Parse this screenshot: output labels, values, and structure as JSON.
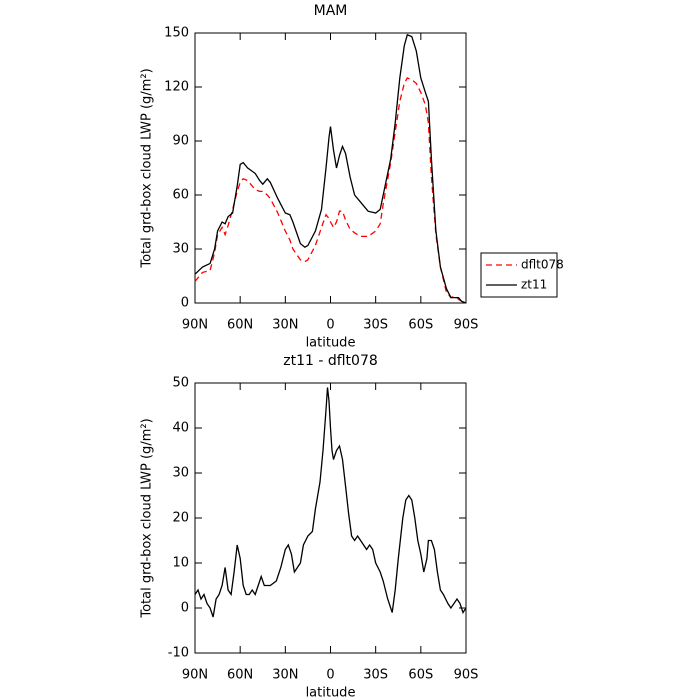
{
  "chart_data": [
    {
      "type": "line",
      "title": "MAM",
      "xlabel": "latitude",
      "ylabel": "Total grd-box cloud LWP (g/m²)",
      "x": [
        90,
        85,
        80,
        77,
        75,
        72,
        70,
        68,
        65,
        62,
        60,
        58,
        55,
        50,
        47,
        45,
        42,
        40,
        35,
        30,
        27,
        25,
        20,
        17,
        15,
        10,
        6,
        3,
        1,
        0,
        -2,
        -4,
        -6,
        -8,
        -10,
        -13,
        -16,
        -20,
        -25,
        -30,
        -33,
        -35,
        -40,
        -43,
        -46,
        -49,
        -51,
        -54,
        -57,
        -60,
        -63,
        -65,
        -67,
        -70,
        -73,
        -77,
        -80,
        -83,
        -85,
        -87,
        -90
      ],
      "series": [
        {
          "name": "dflt078",
          "color": "#ff0000",
          "line_style": "dashed",
          "values": [
            12,
            17,
            18,
            28,
            38,
            42,
            38,
            43,
            52,
            62,
            67,
            69,
            68,
            63,
            62,
            62,
            60,
            58,
            50,
            40,
            35,
            30,
            24,
            23,
            24,
            32,
            42,
            49,
            47,
            45,
            42,
            45,
            51,
            51,
            46,
            41,
            39,
            37,
            37,
            40,
            44,
            55,
            78,
            95,
            112,
            122,
            125,
            124,
            122,
            117,
            110,
            100,
            70,
            38,
            20,
            6,
            3,
            4,
            2,
            1,
            0
          ]
        },
        {
          "name": "zt11",
          "color": "#000000",
          "line_style": "solid",
          "values": [
            16,
            20,
            22,
            30,
            40,
            45,
            44,
            48,
            50,
            65,
            77,
            78,
            75,
            72,
            68,
            66,
            69,
            67,
            58,
            50,
            49,
            45,
            33,
            31,
            32,
            40,
            52,
            75,
            92,
            98,
            85,
            75,
            82,
            87,
            83,
            70,
            60,
            56,
            51,
            50,
            52,
            60,
            80,
            100,
            125,
            143,
            149,
            148,
            140,
            125,
            117,
            112,
            80,
            40,
            20,
            8,
            3,
            3,
            3,
            1,
            0
          ]
        }
      ],
      "xlim": [
        90,
        -90
      ],
      "xticks": [
        {
          "value": 90,
          "label": "90N"
        },
        {
          "value": 60,
          "label": "60N"
        },
        {
          "value": 30,
          "label": "30N"
        },
        0,
        {
          "value": -30,
          "label": "30S"
        },
        {
          "value": -60,
          "label": "60S"
        },
        {
          "value": -90,
          "label": "90S"
        }
      ],
      "ylim": [
        0,
        150
      ],
      "yticks": [
        0,
        30,
        60,
        90,
        120,
        150
      ],
      "legend": "right"
    },
    {
      "type": "line",
      "title": "zt11 - dflt078",
      "xlabel": "latitude",
      "ylabel": "Total grd-box cloud LWP (g/m²)",
      "x": [
        90,
        88,
        86,
        84,
        82,
        80,
        78,
        76,
        74,
        72,
        70,
        68,
        66,
        64,
        62,
        60,
        58,
        56,
        54,
        52,
        50,
        48,
        46,
        44,
        40,
        36,
        33,
        30,
        28,
        26,
        24,
        22,
        20,
        18,
        15,
        12,
        10,
        7,
        5,
        3,
        2,
        1,
        0,
        -1,
        -2,
        -4,
        -6,
        -8,
        -10,
        -12,
        -14,
        -16,
        -18,
        -20,
        -22,
        -24,
        -26,
        -28,
        -30,
        -33,
        -35,
        -38,
        -40,
        -41,
        -43,
        -45,
        -48,
        -50,
        -52,
        -54,
        -56,
        -58,
        -60,
        -62,
        -64,
        -65,
        -67,
        -69,
        -71,
        -73,
        -75,
        -78,
        -80,
        -82,
        -84,
        -86,
        -88,
        -90
      ],
      "values": [
        3,
        4,
        2,
        3,
        1,
        0,
        -2,
        2,
        3,
        5,
        9,
        4,
        3,
        8,
        14,
        11,
        5,
        3,
        3,
        4,
        3,
        5,
        7,
        5,
        5,
        6,
        9,
        13,
        14,
        12,
        8,
        9,
        10,
        14,
        16,
        17,
        22,
        28,
        35,
        44,
        49,
        46,
        40,
        35,
        33,
        35,
        36,
        33,
        27,
        21,
        16,
        15,
        16,
        15,
        14,
        13,
        14,
        13,
        10,
        8,
        6,
        2,
        0,
        -1,
        4,
        11,
        20,
        24,
        25,
        24,
        20,
        15,
        12,
        8,
        11,
        15,
        15,
        13,
        8,
        4,
        3,
        1,
        0,
        1,
        2,
        1,
        -1,
        0
      ],
      "color": "#000000",
      "xlim": [
        90,
        -90
      ],
      "xticks": [
        {
          "value": 90,
          "label": "90N"
        },
        {
          "value": 60,
          "label": "60N"
        },
        {
          "value": 30,
          "label": "30N"
        },
        0,
        {
          "value": -30,
          "label": "30S"
        },
        {
          "value": -60,
          "label": "60S"
        },
        {
          "value": -90,
          "label": "90S"
        }
      ],
      "ylim": [
        -10,
        50
      ],
      "yticks": [
        -10,
        0,
        10,
        20,
        30,
        40,
        50
      ]
    }
  ]
}
